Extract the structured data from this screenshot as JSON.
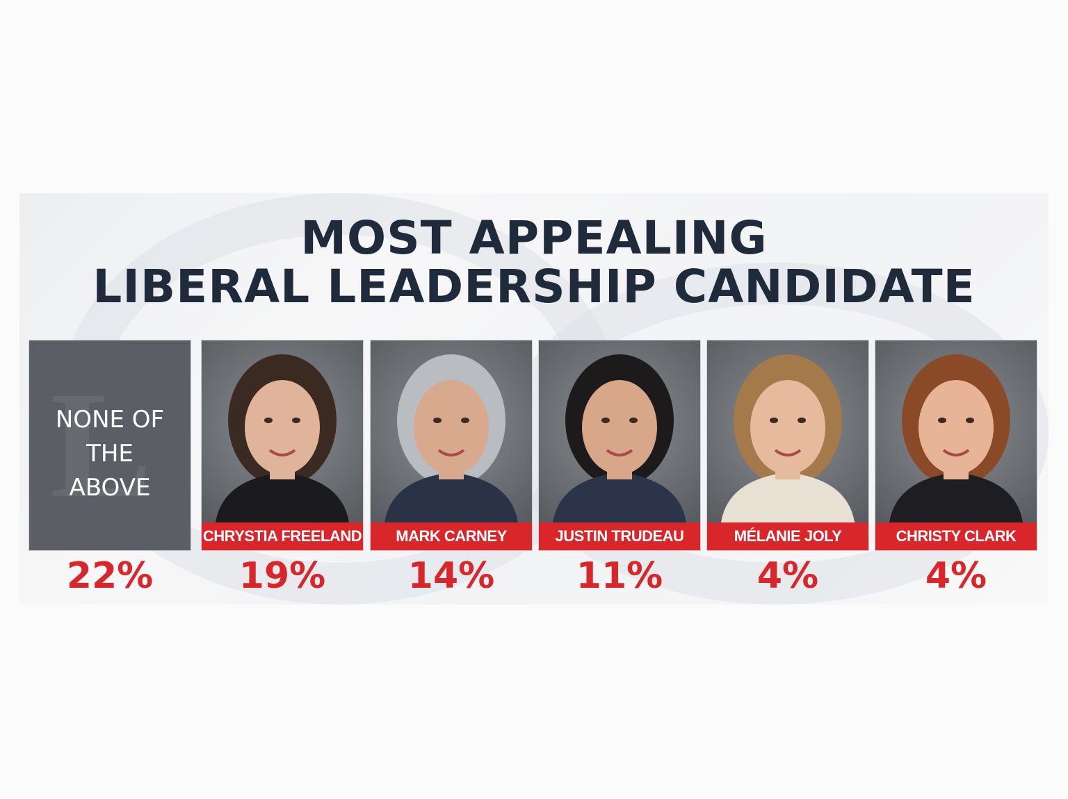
{
  "title_lines": [
    "MOST APPEALING",
    "LIBERAL LEADERSHIP CANDIDATE"
  ],
  "colors": {
    "title": "#1f2a3a",
    "accent_red": "#d9262a",
    "card_gray": "#5b5e64"
  },
  "chart_data": {
    "type": "table",
    "title": "MOST APPEALING LIBERAL LEADERSHIP CANDIDATE",
    "categories": [
      "NONE OF THE ABOVE",
      "CHRYSTIA FREELAND",
      "MARK CARNEY",
      "JUSTIN TRUDEAU",
      "MÉLANIE JOLY",
      "CHRISTY CLARK"
    ],
    "values": [
      22,
      19,
      14,
      11,
      4,
      4
    ],
    "value_labels": [
      "22%",
      "19%",
      "14%",
      "11%",
      "4%",
      "4%"
    ]
  },
  "none_lines": [
    "NONE OF",
    "THE",
    "ABOVE"
  ]
}
